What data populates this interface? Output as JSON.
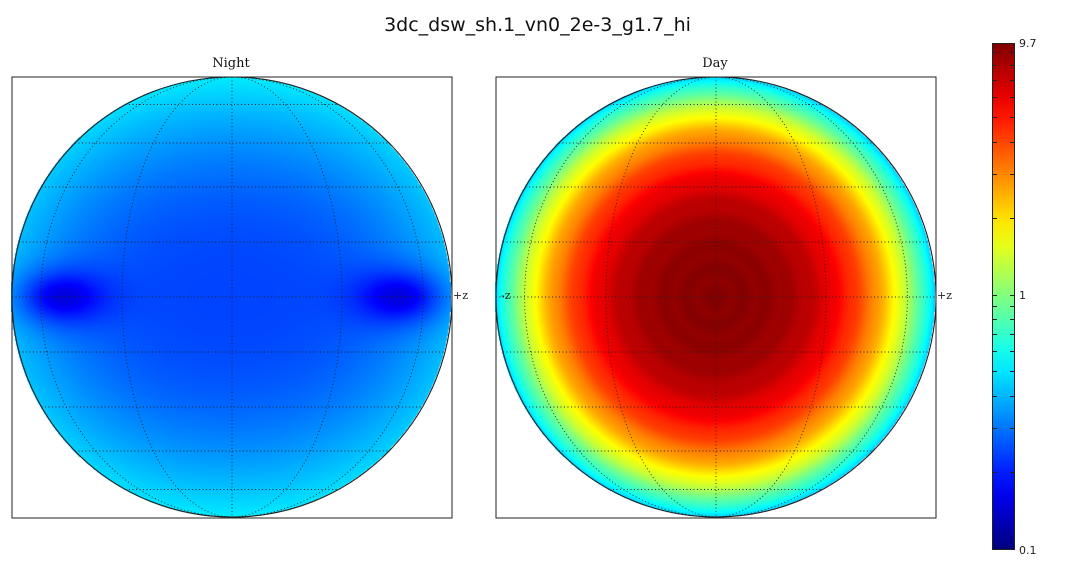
{
  "title": "3dc_dsw_sh.1_vn0_2e-3_g1.7_hi",
  "chart_data": {
    "type": "heatmap",
    "panels": [
      {
        "title": "Night",
        "left_axis_label": "",
        "right_axis_label": "+z",
        "value_range": [
          0.12,
          0.45
        ],
        "center_value": 0.26,
        "min_location_words": "near left and right limb at the equator"
      },
      {
        "title": "Day",
        "left_axis_label": "-z",
        "right_axis_label": "+z",
        "value_range": [
          0.45,
          9.5
        ],
        "center_value": 9.5,
        "min_location_words": "limb"
      }
    ],
    "colorbar": {
      "scale": "log",
      "colormap": "jet",
      "min": 0.1,
      "max": 9.7,
      "tick_labels": [
        "9.7",
        "1",
        "0.1"
      ]
    },
    "grid": "dotted"
  }
}
